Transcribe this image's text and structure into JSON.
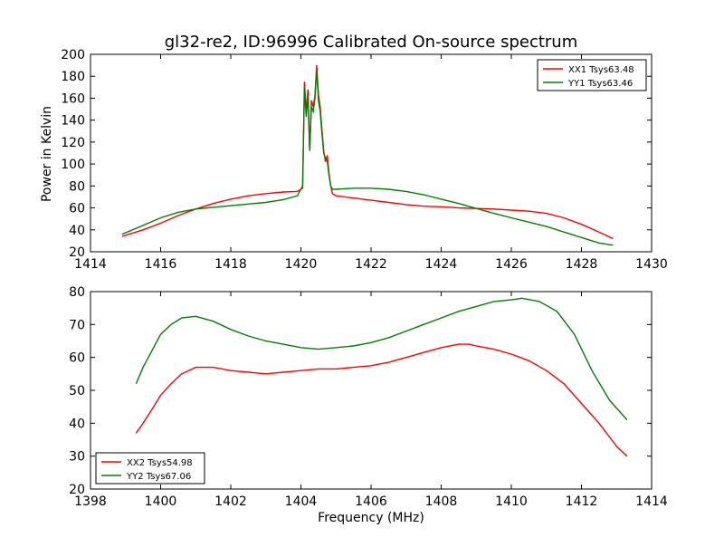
{
  "figure": {
    "title": "gl32-re2, ID:96996 Calibrated On-source spectrum",
    "ylabel": "Power in Kelvin",
    "xlabel": "Frequency (MHz)"
  },
  "chart_data": [
    {
      "type": "line",
      "grid": false,
      "legend_position": "top-right",
      "xlim": [
        1414,
        1430
      ],
      "ylim": [
        20,
        200
      ],
      "x_ticks": [
        1414,
        1416,
        1418,
        1420,
        1422,
        1424,
        1426,
        1428,
        1430
      ],
      "y_ticks": [
        20,
        40,
        60,
        80,
        100,
        120,
        140,
        160,
        180,
        200
      ],
      "series": [
        {
          "name": "XX1 Tsys63.48",
          "color": "#ff0000",
          "x": [
            1414.9,
            1415.5,
            1416.0,
            1416.5,
            1417.0,
            1417.5,
            1418.0,
            1418.5,
            1419.0,
            1419.5,
            1419.9,
            1420.05,
            1420.1,
            1420.15,
            1420.2,
            1420.25,
            1420.3,
            1420.35,
            1420.4,
            1420.45,
            1420.5,
            1420.55,
            1420.6,
            1420.65,
            1420.7,
            1420.75,
            1420.8,
            1420.85,
            1420.9,
            1420.95,
            1421.0,
            1421.5,
            1422.0,
            1422.5,
            1423.0,
            1423.5,
            1424.0,
            1424.5,
            1425.0,
            1425.5,
            1426.0,
            1426.5,
            1427.0,
            1427.5,
            1428.0,
            1428.5,
            1428.9
          ],
          "values": [
            34,
            40,
            46,
            53,
            59,
            64,
            68,
            71,
            73,
            74.5,
            75,
            78,
            175,
            148,
            168,
            112,
            158,
            152,
            162,
            190,
            163,
            152,
            132,
            112,
            102,
            108,
            92,
            80,
            73,
            72,
            71,
            69,
            67,
            65,
            63,
            61.5,
            61,
            60,
            59.5,
            59,
            58,
            57,
            55,
            51,
            45,
            38,
            32
          ]
        },
        {
          "name": "YY1 Tsys63.46",
          "color": "#008000",
          "x": [
            1414.9,
            1415.5,
            1416.0,
            1416.5,
            1417.0,
            1417.5,
            1418.0,
            1418.5,
            1419.0,
            1419.5,
            1419.9,
            1420.05,
            1420.1,
            1420.15,
            1420.2,
            1420.25,
            1420.3,
            1420.35,
            1420.4,
            1420.45,
            1420.5,
            1420.55,
            1420.6,
            1420.65,
            1420.7,
            1420.75,
            1420.8,
            1420.85,
            1420.9,
            1420.95,
            1421.0,
            1421.5,
            1422.0,
            1422.5,
            1423.0,
            1423.5,
            1424.0,
            1424.5,
            1425.0,
            1425.5,
            1426.0,
            1426.5,
            1427.0,
            1427.5,
            1428.0,
            1428.5,
            1428.9
          ],
          "values": [
            36,
            44,
            51,
            56,
            59,
            60.5,
            62,
            63.5,
            65,
            67.5,
            71,
            80,
            170,
            143,
            162,
            113,
            152,
            148,
            160,
            186,
            158,
            148,
            128,
            110,
            105,
            103,
            90,
            80,
            77,
            77,
            77,
            78,
            78,
            77,
            75,
            72,
            68,
            64,
            59.5,
            55,
            51,
            47,
            43,
            38,
            33,
            28,
            26
          ]
        }
      ]
    },
    {
      "type": "line",
      "grid": false,
      "legend_position": "bottom-left",
      "xlim": [
        1398,
        1414
      ],
      "ylim": [
        20,
        80
      ],
      "x_ticks": [
        1398,
        1400,
        1402,
        1404,
        1406,
        1408,
        1410,
        1412,
        1414
      ],
      "y_ticks": [
        20,
        30,
        40,
        50,
        60,
        70,
        80
      ],
      "series": [
        {
          "name": "XX2 Tsys54.98",
          "color": "#ff0000",
          "x": [
            1399.3,
            1399.5,
            1399.8,
            1400.0,
            1400.3,
            1400.6,
            1401.0,
            1401.5,
            1402.0,
            1402.5,
            1403.0,
            1403.5,
            1404.0,
            1404.5,
            1405.0,
            1405.5,
            1406.0,
            1406.5,
            1407.0,
            1407.5,
            1408.0,
            1408.5,
            1408.8,
            1409.0,
            1409.5,
            1410.0,
            1410.5,
            1411.0,
            1411.5,
            1412.0,
            1412.5,
            1413.0,
            1413.3
          ],
          "values": [
            37,
            40,
            45,
            48.5,
            52,
            55,
            57,
            57,
            56,
            55.5,
            55,
            55.5,
            56,
            56.5,
            56.5,
            57,
            57.5,
            58.5,
            60,
            61.5,
            63,
            64,
            64,
            63.5,
            62.5,
            61,
            59,
            56,
            52,
            46,
            40,
            33,
            30
          ]
        },
        {
          "name": "YY2 Tsys67.06",
          "color": "#008000",
          "x": [
            1399.3,
            1399.5,
            1399.8,
            1400.0,
            1400.3,
            1400.6,
            1401.0,
            1401.5,
            1402.0,
            1402.5,
            1403.0,
            1403.5,
            1404.0,
            1404.5,
            1405.0,
            1405.5,
            1406.0,
            1406.5,
            1407.0,
            1407.5,
            1408.0,
            1408.5,
            1409.0,
            1409.5,
            1410.0,
            1410.3,
            1410.8,
            1411.3,
            1411.8,
            1412.3,
            1412.8,
            1413.3
          ],
          "values": [
            52,
            57,
            63,
            67,
            70,
            72,
            72.5,
            71,
            68.5,
            66.5,
            65,
            64,
            63,
            62.5,
            63,
            63.5,
            64.5,
            66,
            68,
            70,
            72,
            74,
            75.5,
            77,
            77.5,
            78,
            77,
            74,
            67,
            56,
            47,
            41
          ]
        }
      ]
    }
  ]
}
